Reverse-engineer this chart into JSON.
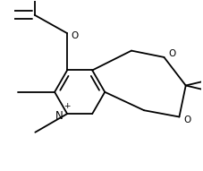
{
  "bg_color": "#ffffff",
  "line_color": "#000000",
  "lw": 1.3,
  "fs": 7.5,
  "figsize": [
    2.27,
    1.91
  ],
  "dpi": 100,
  "xlim": [
    -0.5,
    3.8
  ],
  "ylim": [
    -0.3,
    3.6
  ]
}
